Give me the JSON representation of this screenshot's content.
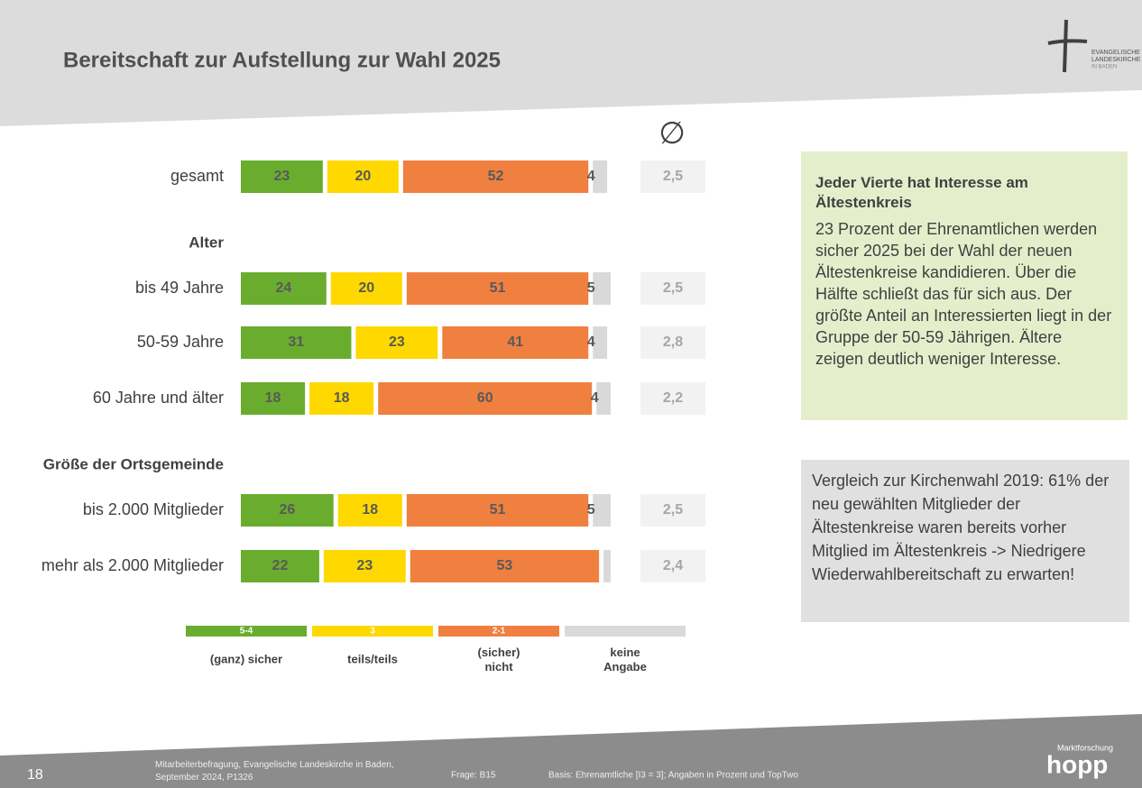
{
  "chart_data": {
    "type": "stacked-bar",
    "title": "Bereitschaft zur Aufstellung zur Wahl 2025",
    "categories": [
      "gesamt",
      "bis 49 Jahre",
      "50-59 Jahre",
      "60 Jahre und älter",
      "bis 2.000 Mitglieder",
      "mehr als 2.000 Mitglieder"
    ],
    "groups": [
      {
        "label": "Alter",
        "before": 1
      },
      {
        "label": "Größe der Ortsgemeinde",
        "before": 4
      }
    ],
    "series": [
      {
        "name": "(ganz) sicher",
        "code": "5-4",
        "color": "#6aad2e",
        "values": [
          23,
          24,
          31,
          18,
          26,
          22
        ]
      },
      {
        "name": "teils/teils",
        "code": "3",
        "color": "#ffd800",
        "values": [
          20,
          20,
          23,
          18,
          18,
          23
        ]
      },
      {
        "name": "(sicher) nicht",
        "code": "2-1",
        "color": "#f08040",
        "values": [
          52,
          51,
          41,
          60,
          51,
          53
        ]
      },
      {
        "name": "keine Angabe",
        "color": "#d9d9d9",
        "values": [
          4,
          5,
          4,
          4,
          5,
          2
        ],
        "value_labels": [
          "4",
          "5",
          "4",
          "4",
          "5",
          null
        ]
      }
    ],
    "average": {
      "header": "∅",
      "values": [
        2.5,
        2.5,
        2.8,
        2.2,
        2.5,
        2.4
      ],
      "value_labels": [
        "2,5",
        "2,5",
        "2,8",
        "2,2",
        "2,5",
        "2,4"
      ]
    }
  },
  "logo": {
    "line1": "EVANGELISCHE",
    "line2": "LANDESKIRCHE",
    "line3": "IN BADEN"
  },
  "box1": {
    "title": "Jeder Vierte hat Interesse am Ältestenkreis",
    "text": "23 Prozent der Ehrenamtlichen werden sicher 2025 bei der Wahl der neuen Ältestenkreise kandidieren. Über die Hälfte schließt das für sich aus. Der größte Anteil an Interessierten liegt in der Gruppe der 50-59 Jährigen. Ältere zeigen deutlich weniger Interesse."
  },
  "box2": {
    "text": "Vergleich zur Kirchenwahl 2019: 61% der neu gewählten Mitglieder der Ältestenkreise waren bereits vorher Mitglied im Ältestenkreis -> Niedrigere Wiederwahlbereitschaft zu erwarten!"
  },
  "footer": {
    "page": "18",
    "source": "Mitarbeiterbefragung, Evangelische Landeskirche in Baden,  September 2024, P1326",
    "question": "Frage:  B15",
    "basis": "Basis:  Ehrenamtliche [I3 = 3]; Angaben in Prozent und TopTwo",
    "brand_small": "Marktforschung",
    "brand": "hopp"
  }
}
